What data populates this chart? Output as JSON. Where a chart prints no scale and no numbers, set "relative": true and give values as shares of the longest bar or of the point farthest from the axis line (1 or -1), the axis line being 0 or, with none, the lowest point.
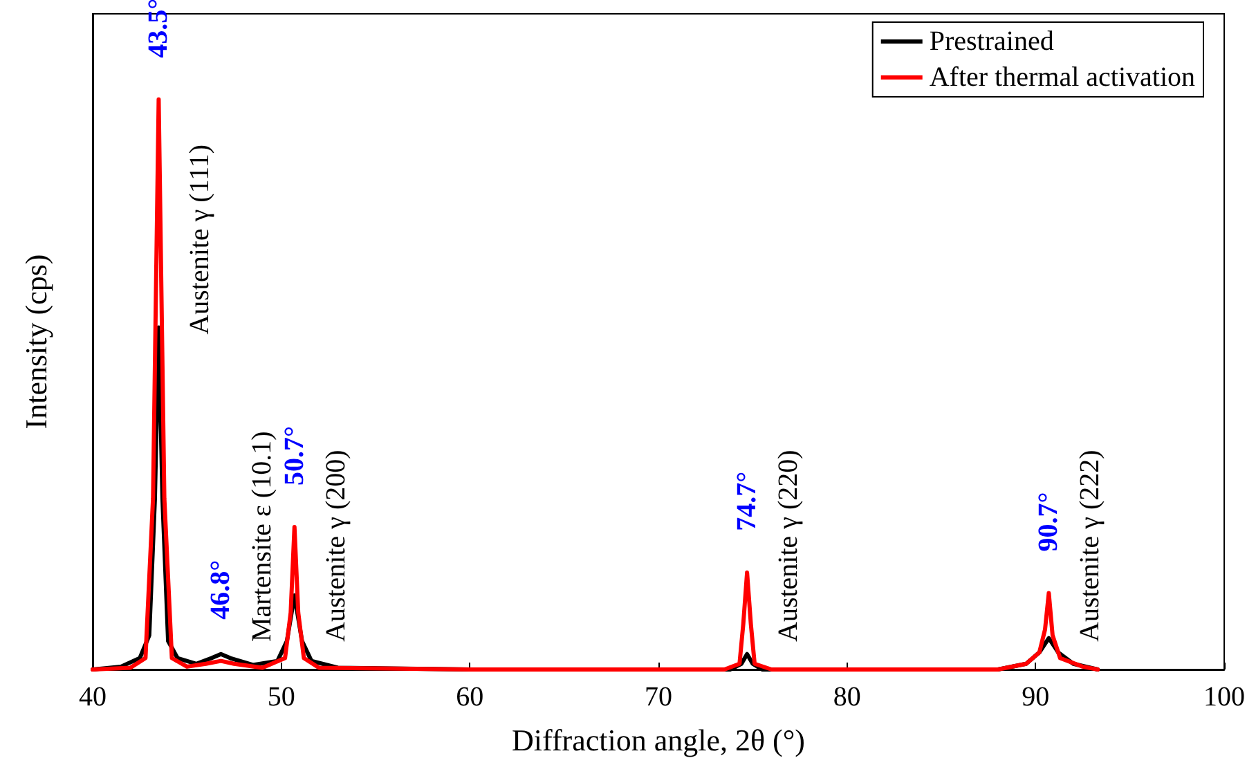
{
  "chart_data": {
    "type": "line",
    "relative": true,
    "xlabel": "Diffraction angle, 2θ (°)",
    "ylabel": "Intensity (cps)",
    "xlim": [
      40,
      100
    ],
    "xticks": [
      40,
      50,
      60,
      70,
      80,
      90,
      100
    ],
    "grid": false,
    "legend": "top right",
    "marker": "none",
    "line_style": "solid",
    "series": [
      {
        "name": "Prestrained",
        "color": "#000000",
        "x": [
          40,
          41.5,
          42.5,
          43,
          43.3,
          43.5,
          43.7,
          44,
          44.5,
          45.5,
          46.3,
          46.8,
          47.3,
          48.5,
          49.8,
          50.3,
          50.7,
          51.1,
          51.6,
          53,
          60,
          73.8,
          74.4,
          74.7,
          75,
          75.5,
          88,
          89.5,
          90.2,
          90.7,
          91.2,
          92,
          93.3
        ],
        "values": [
          0,
          0.005,
          0.02,
          0.06,
          0.3,
          0.6,
          0.3,
          0.05,
          0.02,
          0.01,
          0.02,
          0.027,
          0.02,
          0.008,
          0.015,
          0.05,
          0.13,
          0.05,
          0.015,
          0.003,
          0,
          0,
          0.01,
          0.027,
          0.01,
          0,
          0,
          0.01,
          0.03,
          0.055,
          0.03,
          0.01,
          0
        ]
      },
      {
        "name": "After thermal activation",
        "color": "#ff0000",
        "x": [
          40,
          42,
          42.8,
          43.2,
          43.5,
          43.8,
          44.2,
          45,
          46,
          46.8,
          47.5,
          49,
          50.2,
          50.5,
          50.7,
          50.9,
          51.2,
          52,
          60,
          73.5,
          74.3,
          74.5,
          74.7,
          74.9,
          75.1,
          76,
          88,
          89.5,
          90.2,
          90.5,
          90.7,
          90.9,
          91.3,
          92.5,
          93.3
        ],
        "values": [
          0,
          0.003,
          0.02,
          0.3,
          1,
          0.3,
          0.02,
          0.005,
          0.01,
          0.015,
          0.01,
          0.003,
          0.02,
          0.1,
          0.25,
          0.1,
          0.02,
          0.003,
          0,
          0,
          0.01,
          0.08,
          0.17,
          0.08,
          0.01,
          0,
          0,
          0.01,
          0.03,
          0.07,
          0.134,
          0.06,
          0.02,
          0.005,
          0
        ]
      }
    ],
    "annotations": [
      {
        "text": "43.5°",
        "x": 43.5,
        "y": 1
      },
      {
        "text": "Austenite γ (111)",
        "x": 43.5,
        "y": 1
      },
      {
        "text": "46.8°",
        "x": 46.8,
        "y": 0.015
      },
      {
        "text": "Martensite ε (10.1)",
        "x": 46.8,
        "y": 0.015
      },
      {
        "text": "50.7°",
        "x": 50.7,
        "y": 0.25
      },
      {
        "text": "Austenite γ (200)",
        "x": 50.7,
        "y": 0.25
      },
      {
        "text": "74.7°",
        "x": 74.7,
        "y": 0.17
      },
      {
        "text": "Austenite γ (220)",
        "x": 74.7,
        "y": 0.17
      },
      {
        "text": "90.7°",
        "x": 90.7,
        "y": 0.134
      },
      {
        "text": "Austenite γ (222)",
        "x": 90.7,
        "y": 0.134
      }
    ]
  }
}
